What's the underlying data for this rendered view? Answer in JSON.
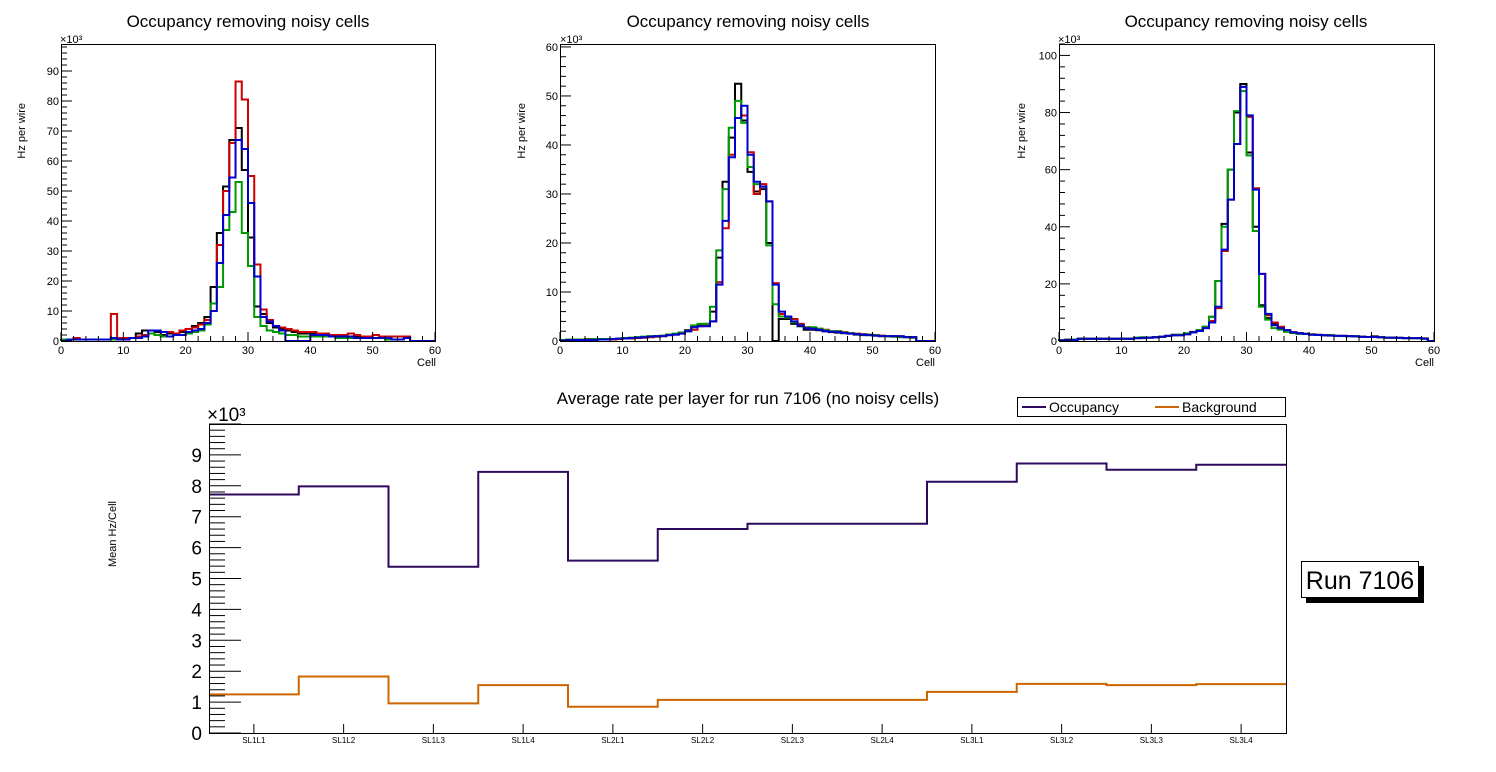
{
  "colors": {
    "black": "#000000",
    "red": "#cc0000",
    "green": "#009900",
    "blue": "#0000cc",
    "occupancy": "#2e0a5c",
    "background": "#cc6600"
  },
  "chart_data": [
    {
      "type": "histogram",
      "title": "Occupancy removing noisy cells",
      "xlabel": "Cell",
      "ylabel": "Hz per wire",
      "y_multiplier": "×10³",
      "xlim": [
        0,
        60
      ],
      "ylim": [
        0,
        99
      ],
      "xticks": [
        "0",
        "10",
        "20",
        "30",
        "40",
        "50",
        "60"
      ],
      "yticks": [
        "0",
        "10",
        "20",
        "30",
        "40",
        "50",
        "60",
        "70",
        "80",
        "90"
      ],
      "bins": 60,
      "series": [
        {
          "name": "black",
          "color": "#000000",
          "values": [
            0.5,
            0.5,
            0.5,
            0.5,
            0.5,
            0.5,
            0.5,
            0.5,
            1,
            1,
            1,
            1,
            2.5,
            3.5,
            3.5,
            3,
            2,
            2.5,
            2.5,
            3,
            4,
            5,
            6,
            8,
            18,
            36,
            51.5,
            67,
            71,
            57,
            34.5,
            11.5,
            9,
            6,
            4.5,
            4,
            3.5,
            3,
            2.5,
            2.5,
            2.5,
            2,
            2,
            2,
            1.5,
            1.5,
            1.5,
            1.5,
            1,
            1,
            1,
            1,
            1,
            0.5,
            0.5,
            1,
            0,
            0,
            0,
            0
          ]
        },
        {
          "name": "red",
          "color": "#cc0000",
          "values": [
            0.5,
            0.5,
            1,
            0.5,
            0.5,
            0.5,
            0.5,
            0.5,
            9,
            1,
            1,
            1,
            1.5,
            2,
            2.5,
            2,
            1.5,
            3,
            2.5,
            3.5,
            4,
            4.5,
            5.5,
            7,
            12.5,
            32,
            50,
            66,
            86.5,
            80.5,
            55,
            25.5,
            10.5,
            7,
            5,
            4.5,
            4,
            3.5,
            3,
            3,
            3,
            2.5,
            2.5,
            2,
            2,
            2,
            2.5,
            2,
            1.5,
            1.5,
            2,
            1.5,
            1.5,
            1.5,
            1.5,
            1.5,
            0,
            0,
            0,
            0
          ]
        },
        {
          "name": "green",
          "color": "#009900",
          "values": [
            0.5,
            0.5,
            0.5,
            0.5,
            0.5,
            0.5,
            0.5,
            0.5,
            0.5,
            0.5,
            0.5,
            1,
            1,
            1.5,
            2.5,
            2,
            1.5,
            1.5,
            2,
            2,
            2.5,
            3,
            3.5,
            5.5,
            12.5,
            18,
            37,
            43,
            53,
            36,
            25,
            8,
            5,
            3.5,
            3,
            2.5,
            2,
            2,
            1.5,
            1.5,
            1.5,
            1.5,
            1.5,
            1.5,
            1,
            1,
            1,
            1,
            1,
            1,
            1,
            1,
            0.5,
            0.5,
            0.5,
            1,
            0,
            0,
            0,
            0
          ]
        },
        {
          "name": "blue",
          "color": "#0000cc",
          "values": [
            0,
            0.5,
            0.5,
            0.5,
            0.5,
            0.5,
            0.5,
            0.5,
            1,
            0.5,
            0.5,
            1,
            1,
            1.5,
            3.5,
            3.5,
            3,
            1.5,
            2,
            2,
            3,
            3.5,
            4,
            6,
            10,
            26,
            42,
            54.5,
            67,
            64,
            46,
            21.5,
            8,
            6.5,
            5,
            3.5,
            0,
            0,
            0,
            0,
            2,
            2,
            2,
            1.5,
            1.5,
            1.5,
            1.5,
            1,
            1,
            1,
            1,
            1,
            1,
            0.5,
            0.5,
            1,
            0,
            0,
            0,
            0
          ]
        }
      ]
    },
    {
      "type": "histogram",
      "title": "Occupancy removing noisy cells",
      "xlabel": "Cell",
      "ylabel": "Hz per wire",
      "y_multiplier": "×10³",
      "xlim": [
        0,
        60
      ],
      "ylim": [
        0,
        60.6
      ],
      "xticks": [
        "0",
        "10",
        "20",
        "30",
        "40",
        "50",
        "60"
      ],
      "yticks": [
        "0",
        "10",
        "20",
        "30",
        "40",
        "50",
        "60"
      ],
      "bins": 60,
      "series": [
        {
          "name": "black",
          "color": "#000000",
          "values": [
            0.1,
            0.2,
            0.2,
            0.3,
            0.3,
            0.3,
            0.3,
            0.3,
            0.3,
            0.4,
            0.5,
            0.5,
            0.6,
            0.7,
            0.8,
            0.9,
            1,
            1.2,
            1.4,
            1.7,
            2.2,
            3,
            3.2,
            3.5,
            6,
            17,
            32.5,
            41.5,
            52.5,
            45,
            34.5,
            30.5,
            31,
            20,
            0,
            4.5,
            4.5,
            3.5,
            3,
            2.3,
            2.3,
            2.2,
            2,
            1.8,
            1.7,
            1.6,
            1.5,
            1.3,
            1.2,
            1.2,
            1.1,
            1,
            1,
            0.9,
            0.8,
            0.8,
            0.7,
            0,
            0,
            0
          ]
        },
        {
          "name": "red",
          "color": "#cc0000",
          "values": [
            0.1,
            0.2,
            0.3,
            0.3,
            0.4,
            0.4,
            0.3,
            0.3,
            0.3,
            0.4,
            0.5,
            0.5,
            0.6,
            0.7,
            0.8,
            0.9,
            1,
            1.3,
            1.3,
            1.6,
            2,
            2.3,
            3,
            3.2,
            4,
            12,
            23,
            38,
            45.5,
            46,
            38.5,
            30,
            32,
            28.5,
            11.8,
            5.5,
            5,
            4.5,
            3.5,
            2.8,
            2.5,
            2.5,
            2.3,
            2,
            2,
            1.8,
            1.6,
            1.5,
            1.4,
            1.3,
            1.2,
            1.1,
            1,
            1,
            0.9,
            0.8,
            0.8,
            0,
            0,
            0
          ]
        },
        {
          "name": "green",
          "color": "#009900",
          "values": [
            0.2,
            0.3,
            0.3,
            0.3,
            0.3,
            0.4,
            0.4,
            0.4,
            0.4,
            0.5,
            0.6,
            0.7,
            0.8,
            0.9,
            1,
            1,
            1.1,
            1.3,
            1.5,
            1.7,
            2,
            3.2,
            3.5,
            3.5,
            7,
            18.5,
            31,
            43.5,
            49,
            44.5,
            35.5,
            32,
            31.5,
            19.5,
            7.5,
            5,
            4.8,
            3.8,
            3.2,
            2.7,
            2.8,
            2.5,
            2.2,
            2,
            2,
            1.7,
            1.6,
            1.4,
            1.3,
            1.3,
            1.2,
            1,
            1,
            0.9,
            0.8,
            0.8,
            0.7,
            0,
            0,
            0
          ]
        },
        {
          "name": "blue",
          "color": "#0000cc",
          "values": [
            0.1,
            0.2,
            0.2,
            0.2,
            0.2,
            0.2,
            0.3,
            0.3,
            0.4,
            0.5,
            0.5,
            0.6,
            0.7,
            0.8,
            0.9,
            1,
            1,
            1.2,
            1.3,
            1.5,
            2,
            2.8,
            3,
            3,
            4,
            11.5,
            24.5,
            37.5,
            45.5,
            48,
            38,
            32.5,
            31.5,
            28.5,
            11.5,
            6,
            5,
            4,
            3.2,
            2.6,
            2.5,
            2.3,
            2,
            1.9,
            1.8,
            1.6,
            1.5,
            1.4,
            1.3,
            1.2,
            1.1,
            1,
            1,
            1,
            1,
            0.8,
            0.8,
            0,
            0,
            0
          ]
        }
      ]
    },
    {
      "type": "histogram",
      "title": "Occupancy removing noisy cells",
      "xlabel": "Cell",
      "ylabel": "Hz per wire",
      "y_multiplier": "×10³",
      "xlim": [
        0,
        60
      ],
      "ylim": [
        0,
        104
      ],
      "xticks": [
        "0",
        "10",
        "20",
        "30",
        "40",
        "50",
        "60"
      ],
      "yticks": [
        "0",
        "20",
        "40",
        "60",
        "80",
        "100"
      ],
      "bins": 60,
      "series": [
        {
          "name": "black",
          "color": "#000000",
          "values": [
            0.2,
            0.5,
            0.5,
            0.8,
            0.8,
            0.8,
            0.8,
            0.8,
            0.8,
            0.8,
            0.8,
            0.8,
            1,
            1,
            1.2,
            1.3,
            1.5,
            1.8,
            2.2,
            2.2,
            2.5,
            3.2,
            3.8,
            5,
            8.5,
            21,
            41,
            60,
            80,
            90,
            66,
            40,
            12.5,
            8,
            6,
            4.5,
            3.7,
            3,
            2.7,
            2.5,
            2.3,
            2.2,
            2,
            2,
            1.8,
            1.8,
            1.7,
            1.6,
            1.5,
            1.4,
            1.6,
            1.3,
            1.2,
            1.2,
            1.1,
            1,
            1,
            1,
            0.9,
            0
          ]
        },
        {
          "name": "red",
          "color": "#cc0000",
          "values": [
            0.2,
            0.3,
            0.3,
            0.8,
            0.8,
            0.8,
            0.8,
            0.8,
            0.8,
            0.8,
            0.8,
            0.8,
            1,
            1.2,
            1.2,
            1.3,
            1.5,
            1.8,
            2,
            2,
            2.4,
            3,
            3.5,
            4.5,
            7,
            11.5,
            31.5,
            49.5,
            69,
            89,
            78.5,
            53.5,
            23.5,
            9,
            6.5,
            5,
            3.8,
            3.1,
            2.7,
            2.5,
            2.3,
            2.1,
            2,
            2,
            1.8,
            1.8,
            1.7,
            1.6,
            1.5,
            1.4,
            1.4,
            1.3,
            1.2,
            1.2,
            1.1,
            1,
            1,
            1,
            0.9,
            0
          ]
        },
        {
          "name": "green",
          "color": "#009900",
          "values": [
            0.3,
            0.3,
            0.5,
            0.8,
            0.8,
            0.8,
            0.8,
            0.8,
            0.8,
            0.8,
            0.8,
            0.8,
            1.2,
            1.3,
            1.2,
            1.3,
            1.5,
            1.8,
            2,
            2.2,
            2.7,
            3,
            3.8,
            5,
            8.5,
            21,
            40,
            60,
            80.5,
            87.5,
            65,
            38.5,
            12,
            7.5,
            4.5,
            4,
            3.2,
            2.8,
            2.5,
            2.5,
            2.2,
            2.1,
            2,
            2,
            1.8,
            1.7,
            1.6,
            1.7,
            1.5,
            1.4,
            1.4,
            1.3,
            1.2,
            1.1,
            1.1,
            1,
            1,
            0.9,
            0.8,
            0
          ]
        },
        {
          "name": "blue",
          "color": "#0000cc",
          "values": [
            0.2,
            0.3,
            0.3,
            0.8,
            0.8,
            0.8,
            0.8,
            0.8,
            0.8,
            0.8,
            0.8,
            0.8,
            1,
            1.1,
            1.2,
            1.3,
            1.5,
            1.8,
            2,
            2,
            2.3,
            3,
            3.5,
            4.5,
            6.5,
            12,
            32,
            49.5,
            69,
            89,
            79,
            53,
            23.5,
            9.5,
            5.5,
            4.5,
            3.8,
            3,
            2.7,
            2.5,
            2.2,
            2.1,
            2,
            1.9,
            1.8,
            1.8,
            1.7,
            1.6,
            1.5,
            1.4,
            1.4,
            1.3,
            1.2,
            1.2,
            1.1,
            1,
            1,
            1,
            0.8,
            0
          ]
        }
      ]
    },
    {
      "type": "line",
      "style": "step",
      "title": "Average rate per layer for run 7106 (no noisy cells)",
      "xlabel": "",
      "ylabel": "Mean Hz/Cell",
      "y_multiplier": "×10³",
      "ylim": [
        0,
        10
      ],
      "yticks": [
        "0",
        "1",
        "2",
        "3",
        "4",
        "5",
        "6",
        "7",
        "8",
        "9"
      ],
      "categories": [
        "SL1L1",
        "SL1L2",
        "SL1L3",
        "SL1L4",
        "SL2L1",
        "SL2L2",
        "SL2L3",
        "SL2L4",
        "SL3L1",
        "SL3L2",
        "SL3L3",
        "SL3L4"
      ],
      "legend": {
        "position": "top-right",
        "entries": [
          "Occupancy",
          "Background"
        ]
      },
      "series": [
        {
          "name": "Occupancy",
          "color": "#2e0a5c",
          "values": [
            7.72,
            7.98,
            5.38,
            8.45,
            5.58,
            6.6,
            6.77,
            6.77,
            8.13,
            8.72,
            8.52,
            8.68
          ]
        },
        {
          "name": "Background",
          "color": "#cc6600",
          "values": [
            1.25,
            1.83,
            0.96,
            1.55,
            0.85,
            1.07,
            1.07,
            1.07,
            1.33,
            1.59,
            1.55,
            1.58
          ]
        }
      ],
      "annotation": "Run 7106"
    }
  ]
}
